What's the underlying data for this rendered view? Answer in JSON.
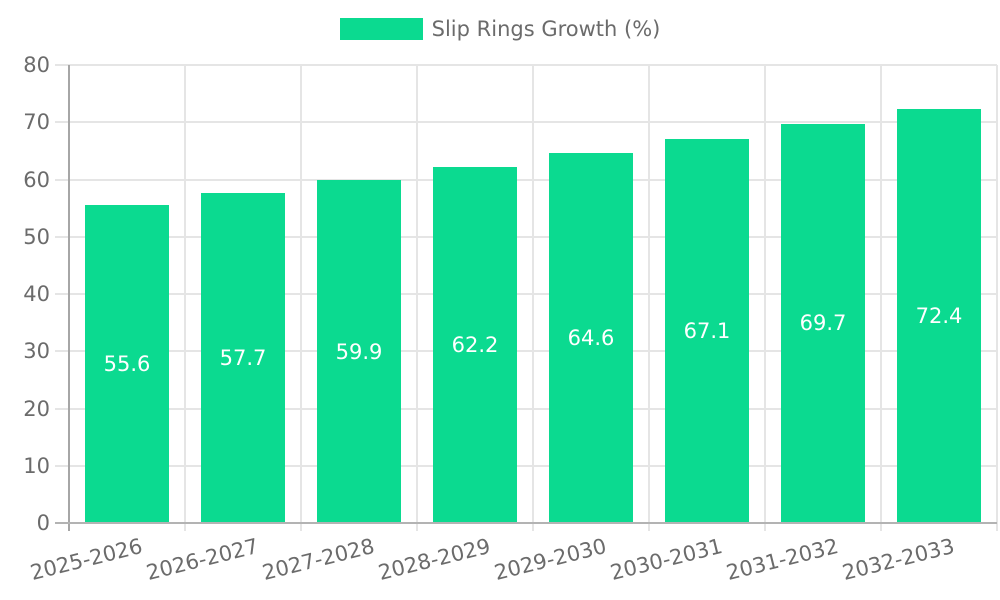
{
  "legend": {
    "position": "top-center",
    "series_label": "Slip Rings Growth (%)"
  },
  "chart_data": {
    "type": "bar",
    "title": "",
    "series_name": "Slip Rings Growth (%)",
    "categories": [
      "2025-2026",
      "2026-2027",
      "2027-2028",
      "2028-2029",
      "2029-2030",
      "2030-2031",
      "2031-2032",
      "2032-2033"
    ],
    "values": [
      55.6,
      57.7,
      59.9,
      62.2,
      64.6,
      67.1,
      69.7,
      72.4
    ],
    "value_labels": [
      "55.6",
      "57.7",
      "59.9",
      "62.2",
      "64.6",
      "67.1",
      "69.7",
      "72.4"
    ],
    "xlabel": "",
    "ylabel": "",
    "ylim": [
      0,
      80
    ],
    "yticks": [
      0,
      10,
      20,
      30,
      40,
      50,
      60,
      70,
      80
    ],
    "grid": true,
    "legend_position": "top-center",
    "value_labels_position": "inside-center",
    "xtick_rotation_deg": -14,
    "colors": {
      "bar": "#0bda90",
      "grid": "#e5e5e5",
      "y_axis_line": "#a6a6a6",
      "x_axis_line": "#b3b3b3",
      "tick_label_text": "#6b6b6b",
      "value_label_text": "#ffffff",
      "background": "#ffffff"
    }
  }
}
